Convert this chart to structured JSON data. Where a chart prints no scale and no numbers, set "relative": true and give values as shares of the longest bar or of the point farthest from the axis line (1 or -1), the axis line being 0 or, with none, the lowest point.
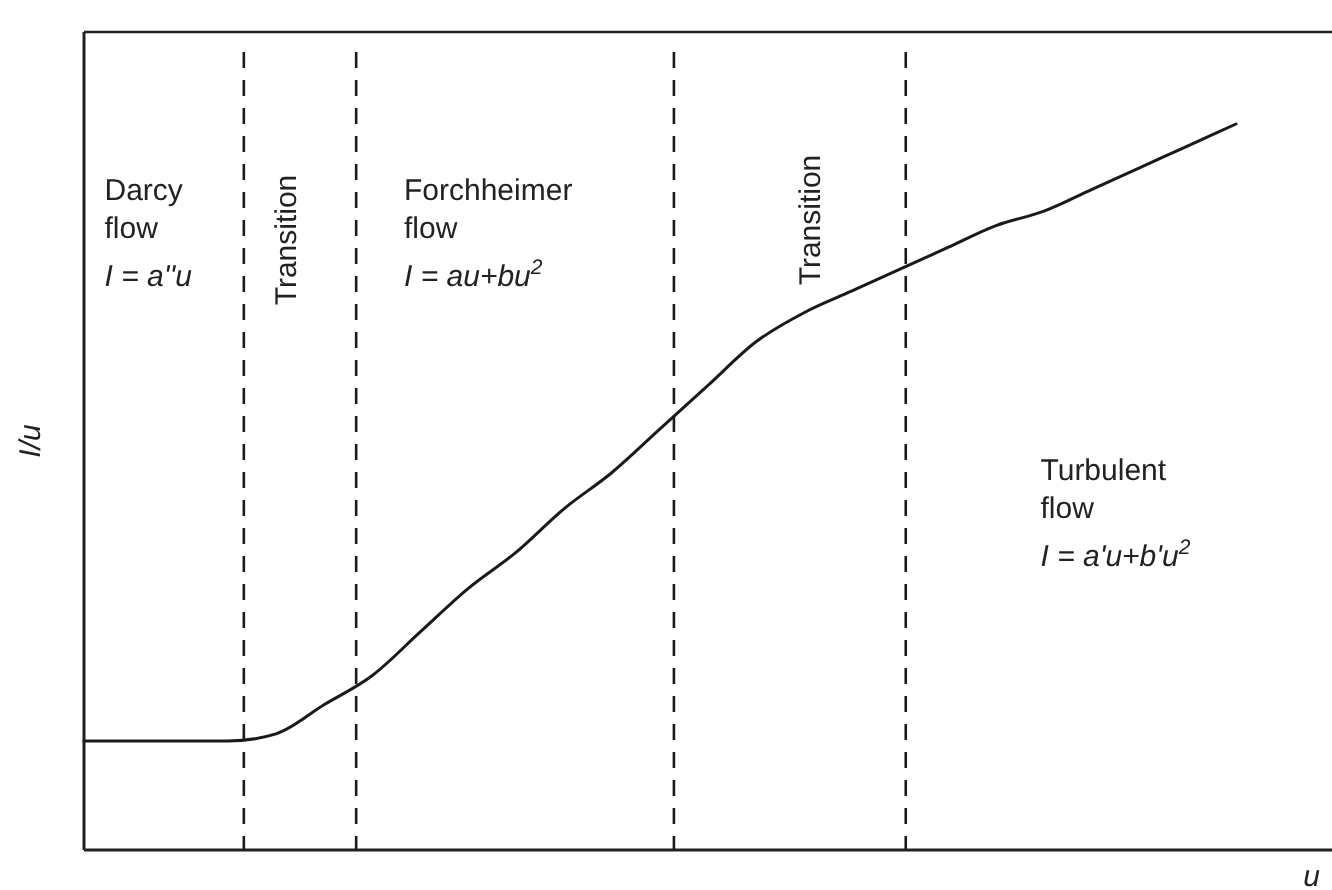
{
  "chart_data": {
    "type": "line",
    "relative": true,
    "xlabel": "u",
    "ylabel": "I/u",
    "categories": [
      null,
      null,
      null,
      null,
      null,
      null,
      null,
      null,
      null,
      null,
      null,
      null,
      null,
      null,
      null,
      null,
      null,
      null,
      null,
      null,
      null,
      null,
      null,
      null,
      null,
      null,
      null
    ],
    "series": [
      {
        "color": "#1a1a1a",
        "values": [
          0.15,
          0.15,
          0.15,
          0.15,
          0.16,
          0.2,
          0.24,
          0.3,
          0.36,
          0.41,
          0.47,
          0.52,
          0.58,
          0.64,
          0.7,
          0.74,
          0.77,
          0.8,
          0.83,
          0.86,
          0.88,
          0.91,
          0.94,
          0.97,
          1,
          null,
          null
        ]
      }
    ],
    "annotations": [
      "Darcy\nflow",
      "I = a''u",
      "Transition",
      "Forchheimer\nflow",
      "I = au+bu$^{2}$",
      "Transition",
      "Turbulent\nflow",
      "I = a'u+b'u$^{2}$"
    ],
    "marker": "none",
    "line_style": "solid"
  }
}
